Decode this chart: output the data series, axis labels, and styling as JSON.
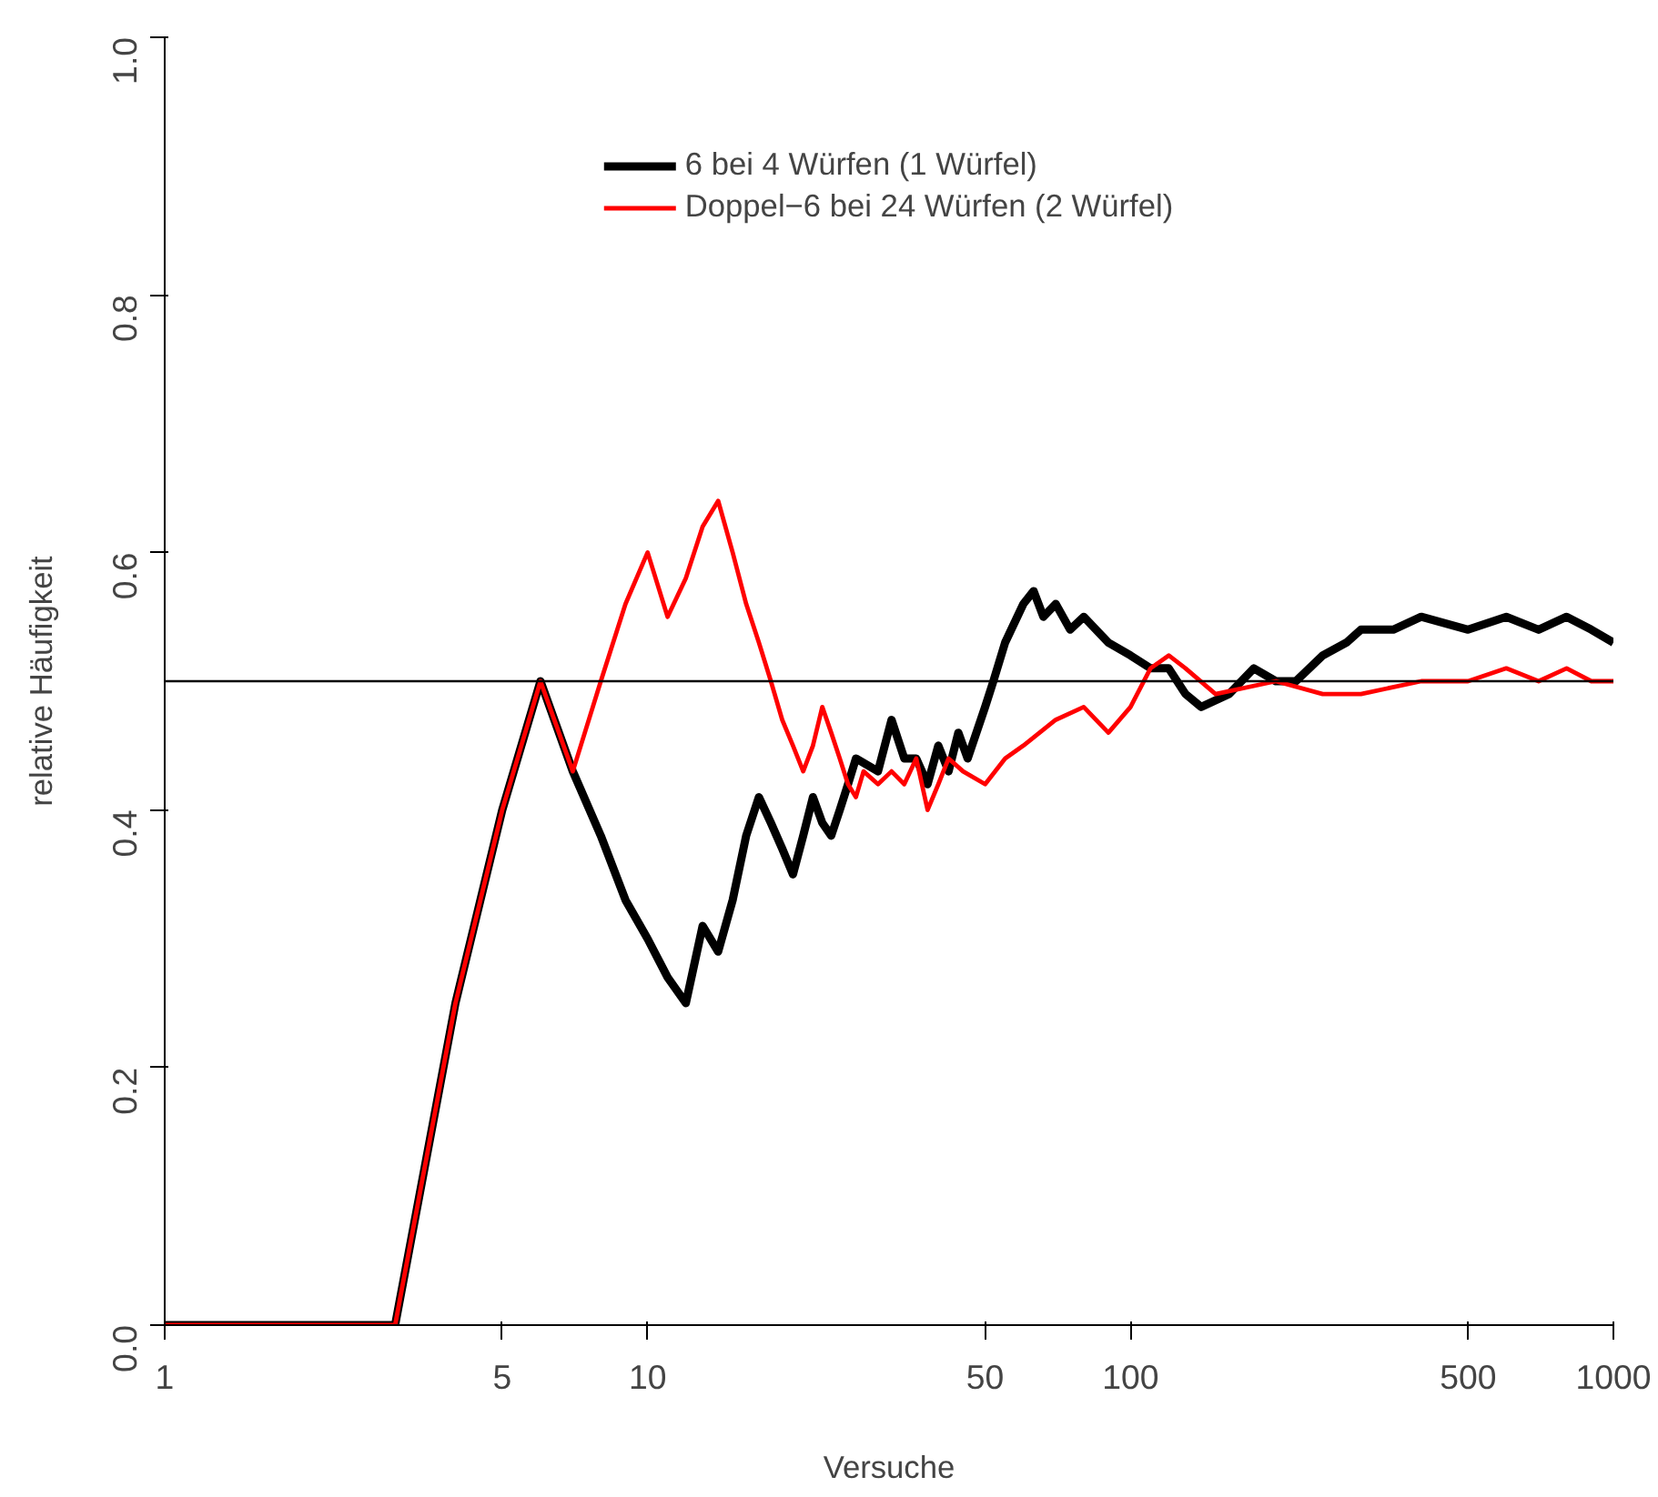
{
  "chart_data": {
    "type": "line",
    "xlabel": "Versuche",
    "ylabel": "relative Häufigkeit",
    "log": "x",
    "xlim": [
      1,
      1000
    ],
    "ylim": [
      0,
      1
    ],
    "xticks": [
      1,
      5,
      10,
      50,
      100,
      500,
      1000
    ],
    "yticks": [
      {
        "value": 0,
        "label": "0.0"
      },
      0.2,
      0.4,
      0.6,
      0.8,
      {
        "value": 1,
        "label": "1.0"
      }
    ],
    "grid": false,
    "legend": "top",
    "line_style": "solid",
    "marker": "none",
    "ref_lines": [
      {
        "axis": "y",
        "value": 0.5,
        "label": null,
        "color": "#000000"
      }
    ],
    "series": [
      {
        "name": "6 bei 4 Würfen (1 Würfel)",
        "color": "#000000",
        "x": [
          1,
          2,
          3,
          4,
          5,
          6,
          7,
          8,
          9,
          10,
          11,
          12,
          13,
          14,
          15,
          16,
          17,
          18,
          19,
          20,
          21,
          22,
          23,
          24,
          25,
          26,
          27,
          30,
          32,
          34,
          36,
          38,
          40,
          42,
          44,
          46,
          50,
          52,
          55,
          60,
          63,
          66,
          70,
          75,
          80,
          90,
          100,
          110,
          120,
          130,
          140,
          160,
          180,
          200,
          220,
          250,
          280,
          300,
          350,
          400,
          500,
          600,
          700,
          800,
          900,
          1000
        ],
        "values": [
          0,
          0,
          0,
          0.25,
          0.4,
          0.5,
          0.43,
          0.38,
          0.33,
          0.3,
          0.27,
          0.25,
          0.31,
          0.29,
          0.33,
          0.38,
          0.41,
          0.39,
          0.37,
          0.35,
          0.38,
          0.41,
          0.39,
          0.38,
          0.4,
          0.42,
          0.44,
          0.43,
          0.47,
          0.44,
          0.44,
          0.42,
          0.45,
          0.43,
          0.46,
          0.44,
          0.48,
          0.5,
          0.53,
          0.56,
          0.57,
          0.55,
          0.56,
          0.54,
          0.55,
          0.53,
          0.52,
          0.51,
          0.51,
          0.49,
          0.48,
          0.49,
          0.51,
          0.5,
          0.5,
          0.52,
          0.53,
          0.54,
          0.54,
          0.55,
          0.54,
          0.55,
          0.54,
          0.55,
          0.54,
          0.53
        ]
      },
      {
        "name": "Doppel−6 bei 24 Würfen (2 Würfel)",
        "color": "#ff0000",
        "x": [
          1,
          2,
          3,
          4,
          5,
          6,
          7,
          8,
          9,
          10,
          11,
          12,
          13,
          14,
          15,
          16,
          17,
          18,
          19,
          20,
          21,
          22,
          23,
          24,
          25,
          26,
          27,
          28,
          30,
          32,
          34,
          36,
          38,
          40,
          42,
          45,
          50,
          55,
          60,
          70,
          80,
          90,
          100,
          110,
          120,
          130,
          150,
          200,
          250,
          300,
          400,
          500,
          600,
          700,
          800,
          900,
          1000
        ],
        "values": [
          0,
          0,
          0,
          0.25,
          0.4,
          0.5,
          0.43,
          0.5,
          0.56,
          0.6,
          0.55,
          0.58,
          0.62,
          0.64,
          0.6,
          0.56,
          0.53,
          0.5,
          0.47,
          0.45,
          0.43,
          0.45,
          0.48,
          0.46,
          0.44,
          0.42,
          0.41,
          0.43,
          0.42,
          0.43,
          0.42,
          0.44,
          0.4,
          0.42,
          0.44,
          0.43,
          0.42,
          0.44,
          0.45,
          0.47,
          0.48,
          0.46,
          0.48,
          0.51,
          0.52,
          0.51,
          0.49,
          0.5,
          0.49,
          0.49,
          0.5,
          0.5,
          0.51,
          0.5,
          0.51,
          0.5,
          0.5
        ]
      }
    ]
  }
}
